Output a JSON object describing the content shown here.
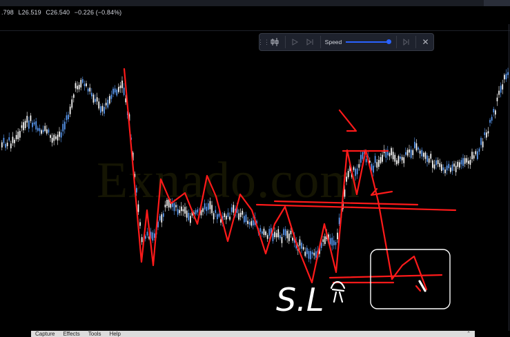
{
  "header": {
    "ohlc_partial": ".798",
    "low": "L26.519",
    "close": "C26.540",
    "change": "−0.226 (−0.84%)"
  },
  "replay_toolbar": {
    "speed_label": "Speed",
    "speed_level": 0.95,
    "icons": [
      "drag-handle-icon",
      "select-bar-icon",
      "play-icon",
      "step-forward-icon",
      "skip-to-end-icon",
      "close-icon"
    ]
  },
  "watermark": {
    "text": "Exnado.com"
  },
  "annotation": {
    "text": "S.L"
  },
  "bottom_menu": {
    "items": [
      "Capture",
      "Effects",
      "Tools",
      "Help"
    ],
    "end_glyph": "⌃"
  },
  "colors": {
    "up_candle": "#5b9cf6",
    "down_candle": "#ffffff",
    "drawing": "#ff1a1a",
    "background": "#000000",
    "toolbar": "#1e222d",
    "accent": "#2962ff"
  }
}
